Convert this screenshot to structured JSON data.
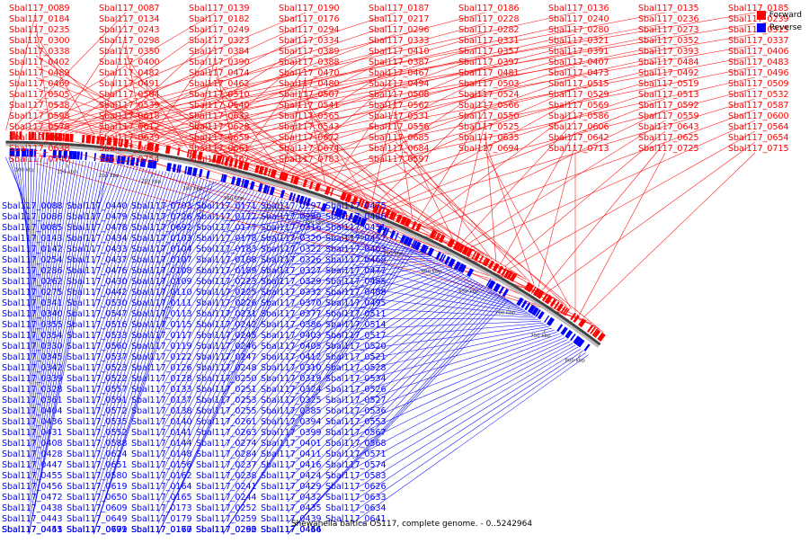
{
  "title": "Shewanella baltica OS117, complete genome. - 0..5242964",
  "legend": [
    {
      "label": "Forward",
      "color": "#ff0000"
    },
    {
      "label": "Reverse",
      "color": "#0000ff"
    }
  ],
  "colors": {
    "forward": "#ff0000",
    "reverse": "#0000ff",
    "axis": "#777777"
  },
  "chart_data": {
    "type": "genome-map",
    "axis_unit": "kbp",
    "tick_labels": [
      "100 kbp",
      "150 kbp",
      "200 kbp",
      "250 kbp",
      "300 kbp",
      "350 kbp",
      "400 kbp",
      "450 kbp",
      "500 kbp",
      "550 kbp",
      "600 kbp",
      "650 kbp",
      "700 kbp",
      "750 kbp",
      "800 kbp"
    ],
    "forward_labels": [
      "Sbal117_0089",
      "Sbal117_0087",
      "Sbal117_0139",
      "Sbal117_0190",
      "Sbal117_0187",
      "Sbal117_0186",
      "Sbal117_0136",
      "Sbal117_0135",
      "Sbal117_0185",
      "Sbal117_0184",
      "Sbal117_0134",
      "Sbal117_0182",
      "Sbal117_0176",
      "Sbal117_0217",
      "Sbal117_0228",
      "Sbal117_0240",
      "Sbal117_0236",
      "Sbal117_0239",
      "Sbal117_0235",
      "Sbal117_0243",
      "Sbal117_0249",
      "Sbal117_0294",
      "Sbal117_0296",
      "Sbal117_0282",
      "Sbal117_0280",
      "Sbal117_0273",
      "Sbal117_0315",
      "Sbal117_0300",
      "Sbal117_0298",
      "Sbal117_0323",
      "Sbal117_0334",
      "Sbal117_0333",
      "Sbal117_0331",
      "Sbal117_0321",
      "Sbal117_0352",
      "Sbal117_0337",
      "Sbal117_0338",
      "Sbal117_0350",
      "Sbal117_0384",
      "Sbal117_0389",
      "Sbal117_0410",
      "Sbal117_0357",
      "Sbal117_0391",
      "Sbal117_0393",
      "Sbal117_0406",
      "Sbal117_0402",
      "Sbal117_0400",
      "Sbal117_0390",
      "Sbal117_0388",
      "Sbal117_0387",
      "Sbal117_0397",
      "Sbal117_0407",
      "Sbal117_0484",
      "Sbal117_0483",
      "Sbal117_0489",
      "Sbal117_0482",
      "Sbal117_0474",
      "Sbal117_0470",
      "Sbal117_0467",
      "Sbal117_0481",
      "Sbal117_0473",
      "Sbal117_0492",
      "Sbal117_0496",
      "Sbal117_0469",
      "Sbal117_0491",
      "Sbal117_0462",
      "Sbal117_0480",
      "Sbal117_0494",
      "Sbal117_0503",
      "Sbal117_0515",
      "Sbal117_0519",
      "Sbal117_0509",
      "Sbal117_0505",
      "Sbal117_0504",
      "Sbal117_0510",
      "Sbal117_0507",
      "Sbal117_0508",
      "Sbal117_0524",
      "Sbal117_0529",
      "Sbal117_0513",
      "Sbal117_0532",
      "Sbal117_0538",
      "Sbal117_0539",
      "Sbal117_0540",
      "Sbal117_0541",
      "Sbal117_0562",
      "Sbal117_0566",
      "Sbal117_0569",
      "Sbal117_0592",
      "Sbal117_0587",
      "Sbal117_0598",
      "Sbal117_0618",
      "Sbal117_0632",
      "Sbal117_0565",
      "Sbal117_0531",
      "Sbal117_0550",
      "Sbal117_0586",
      "Sbal117_0559",
      "Sbal117_0600",
      "Sbal117_0578",
      "Sbal117_0612",
      "Sbal117_0628",
      "Sbal117_0543",
      "Sbal117_0556",
      "Sbal117_0525",
      "Sbal117_0606",
      "Sbal117_0643",
      "Sbal117_0564",
      "Sbal117_0602",
      "Sbal117_0639",
      "Sbal117_0659",
      "Sbal117_0672",
      "Sbal117_0685",
      "Sbal117_0635",
      "Sbal117_0642",
      "Sbal117_0625",
      "Sbal117_0654",
      "Sbal117_0638",
      "Sbal117_0666",
      "Sbal117_0661",
      "Sbal117_0674",
      "Sbal117_0684",
      "Sbal117_0694",
      "Sbal117_0713",
      "Sbal117_0725",
      "Sbal117_0715",
      "Sbal117_0740",
      "Sbal117_0754",
      "Sbal117_0767",
      "Sbal117_0783",
      "Sbal117_0597"
    ],
    "reverse_labels": [
      "Sbal117_0088",
      "Sbal117_0086",
      "Sbal117_0085",
      "Sbal117_0143",
      "Sbal117_0142",
      "Sbal117_0254",
      "Sbal117_0286",
      "Sbal117_0262",
      "Sbal117_0275",
      "Sbal117_0341",
      "Sbal117_0340",
      "Sbal117_0355",
      "Sbal117_0354",
      "Sbal117_0330",
      "Sbal117_0345",
      "Sbal117_0342",
      "Sbal117_0339",
      "Sbal117_0328",
      "Sbal117_0361",
      "Sbal117_0404",
      "Sbal117_0436",
      "Sbal117_0431",
      "Sbal117_0408",
      "Sbal117_0428",
      "Sbal117_0447",
      "Sbal117_0455",
      "Sbal117_0456",
      "Sbal117_0472",
      "Sbal117_0438",
      "Sbal117_0443",
      "Sbal117_0453",
      "Sbal117_0445",
      "Sbal117_0441",
      "Sbal117_0440",
      "Sbal117_0479",
      "Sbal117_0478",
      "Sbal117_0434",
      "Sbal117_0433",
      "Sbal117_0437",
      "Sbal117_0476",
      "Sbal117_0430",
      "Sbal117_0442",
      "Sbal117_0530",
      "Sbal117_0547",
      "Sbal117_0516",
      "Sbal117_0533",
      "Sbal117_0560",
      "Sbal117_0537",
      "Sbal117_0523",
      "Sbal117_0522",
      "Sbal117_0557",
      "Sbal117_0591",
      "Sbal117_0572",
      "Sbal117_0535",
      "Sbal117_0552",
      "Sbal117_0588",
      "Sbal117_0624",
      "Sbal117_0651",
      "Sbal117_0580",
      "Sbal117_0619",
      "Sbal117_0650",
      "Sbal117_0609",
      "Sbal117_0649",
      "Sbal117_0679",
      "Sbal117_0691",
      "Sbal117_0702",
      "Sbal117_0703",
      "Sbal117_0726",
      "Sbal117_0692",
      "Sbal117_0103",
      "Sbal117_0104",
      "Sbal117_0107",
      "Sbal117_0108",
      "Sbal117_0109",
      "Sbal117_0110",
      "Sbal117_0111",
      "Sbal117_0113",
      "Sbal117_0115",
      "Sbal117_0117",
      "Sbal117_0119",
      "Sbal117_0122",
      "Sbal117_0126",
      "Sbal117_0128",
      "Sbal117_0133",
      "Sbal117_0137",
      "Sbal117_0138",
      "Sbal117_0140",
      "Sbal117_0141",
      "Sbal117_0144",
      "Sbal117_0148",
      "Sbal117_0156",
      "Sbal117_0162",
      "Sbal117_0164",
      "Sbal117_0165",
      "Sbal117_0173",
      "Sbal117_0179",
      "Sbal117_0163",
      "Sbal117_0167",
      "Sbal117_0170",
      "Sbal117_0171",
      "Sbal117_0172",
      "Sbal117_0177",
      "Sbal117_0178",
      "Sbal117_0183",
      "Sbal117_0188",
      "Sbal117_0189",
      "Sbal117_0223",
      "Sbal117_0225",
      "Sbal117_0226",
      "Sbal117_0231",
      "Sbal117_0242",
      "Sbal117_0245",
      "Sbal117_0246",
      "Sbal117_0247",
      "Sbal117_0248",
      "Sbal117_0250",
      "Sbal117_0251",
      "Sbal117_0253",
      "Sbal117_0255",
      "Sbal117_0261",
      "Sbal117_0263",
      "Sbal117_0274",
      "Sbal117_0284",
      "Sbal117_0237",
      "Sbal117_0238",
      "Sbal117_0241",
      "Sbal117_0244",
      "Sbal117_0252",
      "Sbal117_0259",
      "Sbal117_0260",
      "Sbal117_0292",
      "Sbal117_0295",
      "Sbal117_0297",
      "Sbal117_0299",
      "Sbal117_0316",
      "Sbal117_0320",
      "Sbal117_0322",
      "Sbal117_0326",
      "Sbal117_0327",
      "Sbal117_0329",
      "Sbal117_0332",
      "Sbal117_0370",
      "Sbal117_0377",
      "Sbal117_0386",
      "Sbal117_0403",
      "Sbal117_0405",
      "Sbal117_0412",
      "Sbal117_0310",
      "Sbal117_0319",
      "Sbal117_0324",
      "Sbal117_0325",
      "Sbal117_0385",
      "Sbal117_0394",
      "Sbal117_0399",
      "Sbal117_0401",
      "Sbal117_0411",
      "Sbal117_0416",
      "Sbal117_0424",
      "Sbal117_0429",
      "Sbal117_0432",
      "Sbal117_0435",
      "Sbal117_0439",
      "Sbal117_0446",
      "Sbal117_0454",
      "Sbal117_0466",
      "Sbal117_0475",
      "Sbal117_0486",
      "Sbal117_0451",
      "Sbal117_0457",
      "Sbal117_0463",
      "Sbal117_0468",
      "Sbal117_0477",
      "Sbal117_0485",
      "Sbal117_0488",
      "Sbal117_0495",
      "Sbal117_0511",
      "Sbal117_0514",
      "Sbal117_0517",
      "Sbal117_0520",
      "Sbal117_0521",
      "Sbal117_0528",
      "Sbal117_0534",
      "Sbal117_0526",
      "Sbal117_0527",
      "Sbal117_0536",
      "Sbal117_0553",
      "Sbal117_0567",
      "Sbal117_0568",
      "Sbal117_0571",
      "Sbal117_0574",
      "Sbal117_0583",
      "Sbal117_0626",
      "Sbal117_0633",
      "Sbal117_0634",
      "Sbal117_0641"
    ]
  }
}
